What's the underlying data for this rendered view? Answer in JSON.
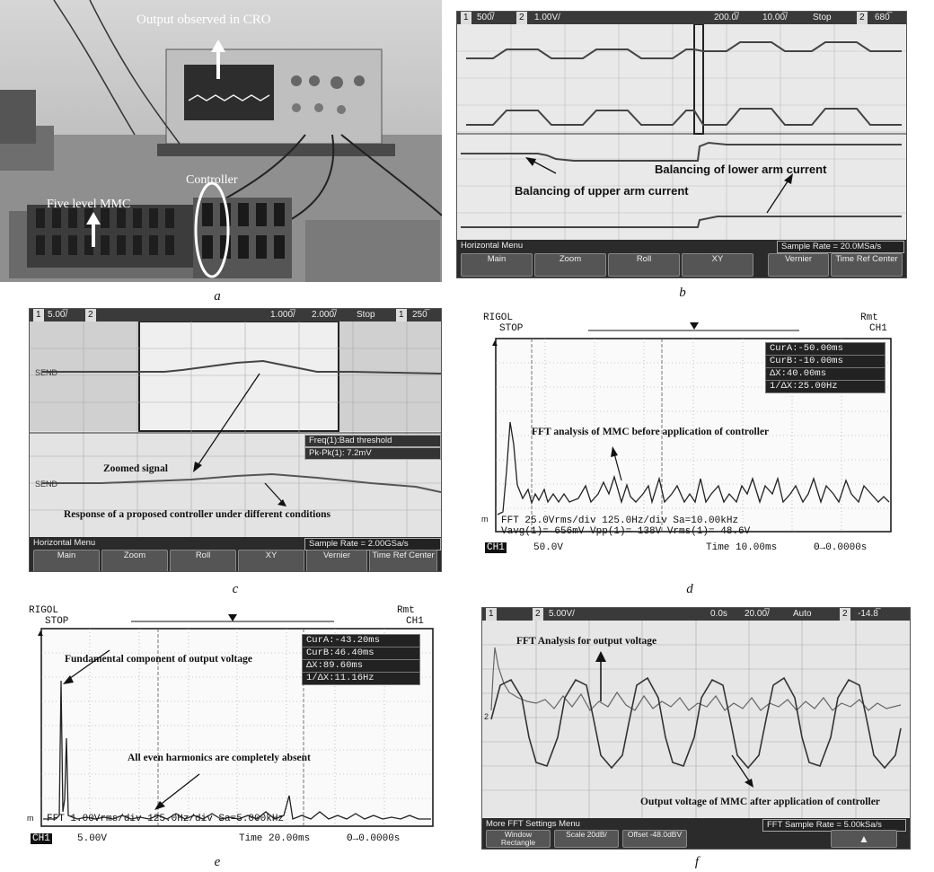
{
  "captions": {
    "a": "a",
    "b": "b",
    "c": "c",
    "d": "d",
    "e": "e",
    "f": "f"
  },
  "panel_a": {
    "labels": {
      "cro": "Output observed  in CRO",
      "controller": "Controller",
      "mmc": "Five level MMC"
    }
  },
  "panel_b": {
    "topbar": {
      "ch1": "1",
      "ch1_scale": "500̅/",
      "ch2": "2",
      "ch2_scale": "1.00V/",
      "time_pos": "200.0̅/",
      "time_div": "10.00̅/",
      "state": "Stop",
      "trig_ch": "2",
      "trig_level": "680̅"
    },
    "annotations": {
      "upper": "Balancing of upper arm current",
      "lower": "Balancing of lower arm current"
    },
    "menu_title": "Horizontal Menu",
    "sample_rate": "Sample Rate = 20.0MSa/s",
    "softkeys": [
      "Main",
      "Zoom",
      "Roll",
      "XY",
      "Vernier",
      "Time Ref Center"
    ]
  },
  "panel_c": {
    "topbar": {
      "ch1": "1",
      "ch1_scale": "5.00̅/",
      "ch2": "2",
      "time_pos": "1.000̅/",
      "time_div": "2.000̅/",
      "state": "Stop",
      "trig_ch": "1",
      "trig_level": "250̅"
    },
    "send_label": "SEND",
    "meas": {
      "freq": "Freq(1):Bad threshold",
      "pkpk": "Pk-Pk(1): 7.2mV"
    },
    "annotations": {
      "zoomed": "Zoomed signal",
      "response": "Response of a proposed controller under different conditions"
    },
    "menu_title": "Horizontal Menu",
    "sample_rate": "Sample Rate = 2.00GSa/s",
    "softkeys": [
      "Main",
      "Zoom",
      "Roll",
      "XY",
      "Vernier",
      "Time Ref Center"
    ]
  },
  "panel_d": {
    "brand": "RIGOL",
    "state": "STOP",
    "rmt": "Rmt",
    "ch": "CH1",
    "cursors": [
      "CurA:-50.00ms",
      "CurB:-10.00ms",
      "ΔX:40.00ms",
      "1/ΔX:25.00Hz"
    ],
    "annotation": "FFT analysis  of MMC before application of controller",
    "fft_line1": "FFT  25.0Vrms/div 125.0Hz/div Sa=10.00kHz",
    "fft_line2": "Vavg(1)= 656mV  Vpp(1)=  138V   Vrms(1)= 48.6V",
    "bottom": {
      "ch": "CH1",
      "scale": "50.0V",
      "time": "Time 10.00ms",
      "offset": "Θ→0.0000s"
    }
  },
  "panel_e": {
    "brand": "RIGOL",
    "state": "STOP",
    "rmt": "Rmt",
    "ch": "CH1",
    "cursors": [
      "CurA:-43.20ms",
      "CurB:46.40ms",
      "ΔX:89.60ms",
      "1/ΔX:11.16Hz"
    ],
    "annotations": {
      "fundamental": "Fundamental component of output voltage",
      "even": "All even harmonics are completely absent"
    },
    "fft_line1": "FFT  1.00Vrms/div 125.0Hz/div Sa=5.000kHz",
    "bottom": {
      "ch": "CH1",
      "scale": "5.00V",
      "time": "Time 20.00ms",
      "offset": "Θ→0.0000s"
    }
  },
  "panel_f": {
    "topbar": {
      "ch1": "1",
      "ch2": "2",
      "ch2_scale": "5.00V/",
      "time_pos": "0.0s",
      "time_div": "20.00̅/",
      "mode": "Auto",
      "trig_ch": "2",
      "trig_level": "-14.8̅"
    },
    "annotations": {
      "fft": "FFT Analysis for output voltage",
      "output": "Output voltage of MMC after application of controller"
    },
    "menu_title": "More FFT Settings Menu",
    "sample_rate": "FFT Sample Rate = 5.00kSa/s",
    "softkeys": [
      "Window Rectangle",
      "Scale 20dB/",
      "Offset -48.0dBV"
    ]
  }
}
